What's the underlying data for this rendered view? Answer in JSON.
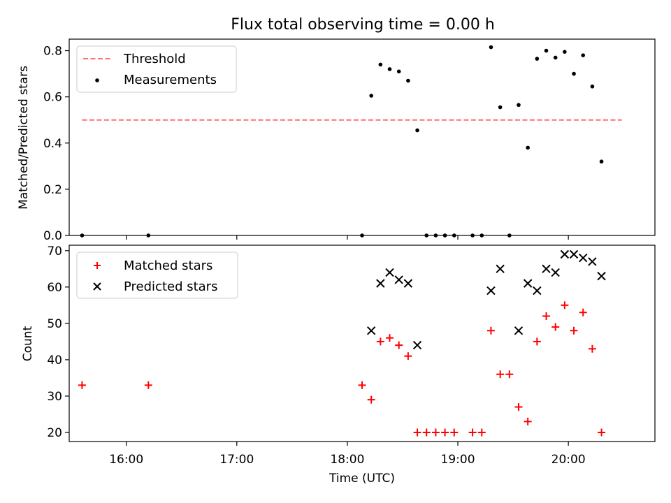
{
  "figure": {
    "title": "Flux total observing time = 0.00 h",
    "xlabel": "Time (UTC)"
  },
  "chart_data": [
    {
      "type": "scatter",
      "panel": "top",
      "ylabel": "Matched/Predicted stars",
      "ylim": [
        0,
        0.85
      ],
      "yticks": [
        0.0,
        0.2,
        0.4,
        0.6,
        0.8
      ],
      "ytick_labels": [
        "0.0",
        "0.2",
        "0.4",
        "0.6",
        "0.8"
      ],
      "xlim": [
        "15:29",
        "20:47"
      ],
      "xticks": [
        "16:00",
        "17:00",
        "18:00",
        "19:00",
        "20:00"
      ],
      "legend_position": "top-left",
      "threshold": {
        "name": "Threshold",
        "value": 0.5,
        "x_start": "15:36",
        "x_end": "20:29",
        "color": "#ff7070",
        "style": "dashed"
      },
      "series": [
        {
          "name": "Measurements",
          "color": "#000000",
          "marker": "dot",
          "x": [
            "15:36",
            "16:12",
            "18:08",
            "18:13",
            "18:18",
            "18:23",
            "18:28",
            "18:33",
            "18:38",
            "18:43",
            "18:48",
            "18:53",
            "18:58",
            "19:08",
            "19:13",
            "19:18",
            "19:23",
            "19:28",
            "19:33",
            "19:38",
            "19:43",
            "19:48",
            "19:53",
            "19:58",
            "20:03",
            "20:08",
            "20:13",
            "20:18",
            "20:23",
            "20:28"
          ],
          "y": [
            0.0,
            0.0,
            0.0,
            0.605,
            0.74,
            0.72,
            0.71,
            0.67,
            0.455,
            0.0,
            0.0,
            0.0,
            0.0,
            0.0,
            0.0,
            0.815,
            0.555,
            0.0,
            0.565,
            0.38,
            0.765,
            0.8,
            0.77,
            0.795,
            0.7,
            0.78,
            0.645,
            0.32,
            null,
            null
          ]
        }
      ]
    },
    {
      "type": "scatter",
      "panel": "bottom",
      "ylabel": "Count",
      "ylim": [
        17.5,
        71.5
      ],
      "yticks": [
        20,
        30,
        40,
        50,
        60,
        70
      ],
      "ytick_labels": [
        "20",
        "30",
        "40",
        "50",
        "60",
        "70"
      ],
      "xlim": [
        "15:29",
        "20:47"
      ],
      "xticks": [
        "16:00",
        "17:00",
        "18:00",
        "19:00",
        "20:00"
      ],
      "xtick_labels": [
        "16:00",
        "17:00",
        "18:00",
        "19:00",
        "20:00"
      ],
      "legend_position": "top-left",
      "series": [
        {
          "name": "Matched stars",
          "color": "#ff0000",
          "marker": "plus",
          "x": [
            "15:36",
            "16:12",
            "18:08",
            "18:13",
            "18:18",
            "18:23",
            "18:28",
            "18:33",
            "18:38",
            "18:43",
            "18:48",
            "18:53",
            "18:58",
            "19:08",
            "19:13",
            "19:18",
            "19:23",
            "19:28",
            "19:33",
            "19:38",
            "19:43",
            "19:48",
            "19:53",
            "19:58",
            "20:03",
            "20:08",
            "20:13",
            "20:18",
            "20:23"
          ],
          "y": [
            33,
            33,
            33,
            29,
            45,
            46,
            44,
            41,
            20,
            20,
            20,
            20,
            20,
            20,
            20,
            48,
            36,
            36,
            27,
            23,
            45,
            52,
            49,
            55,
            48,
            53,
            43,
            20,
            null
          ]
        },
        {
          "name": "Predicted stars",
          "color": "#000000",
          "marker": "x",
          "x": [
            "18:13",
            "18:18",
            "18:23",
            "18:28",
            "18:33",
            "18:38",
            "19:18",
            "19:23",
            "19:33",
            "19:38",
            "19:43",
            "19:48",
            "19:53",
            "19:58",
            "20:03",
            "20:08",
            "20:13",
            "20:18"
          ],
          "y": [
            48,
            61,
            64,
            62,
            61,
            44,
            59,
            65,
            48,
            61,
            59,
            65,
            64,
            69,
            69,
            68,
            67,
            63
          ]
        }
      ]
    }
  ]
}
